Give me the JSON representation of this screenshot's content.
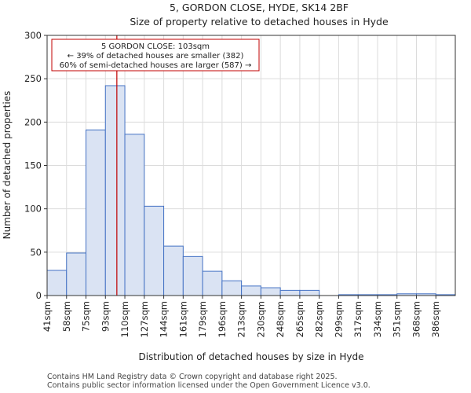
{
  "chart_data": {
    "type": "bar",
    "title": "5, GORDON CLOSE, HYDE, SK14 2BF",
    "subtitle": "Size of property relative to detached houses in Hyde",
    "xlabel": "Distribution of detached houses by size in Hyde",
    "ylabel": "Number of detached properties",
    "categories": [
      "41sqm",
      "58sqm",
      "75sqm",
      "93sqm",
      "110sqm",
      "127sqm",
      "144sqm",
      "161sqm",
      "179sqm",
      "196sqm",
      "213sqm",
      "230sqm",
      "248sqm",
      "265sqm",
      "282sqm",
      "299sqm",
      "317sqm",
      "334sqm",
      "351sqm",
      "368sqm",
      "386sqm"
    ],
    "bin_edges": [
      41,
      58,
      75,
      93,
      110,
      127,
      144,
      161,
      179,
      196,
      213,
      230,
      248,
      265,
      282,
      299,
      317,
      334,
      351,
      368,
      386,
      403
    ],
    "values": [
      29,
      49,
      191,
      242,
      186,
      103,
      57,
      45,
      28,
      17,
      11,
      9,
      6,
      6,
      0,
      1,
      1,
      1,
      2,
      2,
      1
    ],
    "ylim": [
      0,
      300
    ],
    "yticks": [
      0,
      50,
      100,
      150,
      200,
      250,
      300
    ],
    "marker": {
      "value": 103,
      "color": "#c00000",
      "annotation": [
        "5 GORDON CLOSE: 103sqm",
        "← 39% of detached houses are smaller (382)",
        "60% of semi-detached houses are larger (587) →"
      ]
    },
    "colors": {
      "bar_fill": "#dae3f3",
      "bar_edge": "#4472c4",
      "marker": "#c00000"
    }
  },
  "footer": {
    "line1": "Contains HM Land Registry data © Crown copyright and database right 2025.",
    "line2": "Contains public sector information licensed under the Open Government Licence v3.0."
  }
}
